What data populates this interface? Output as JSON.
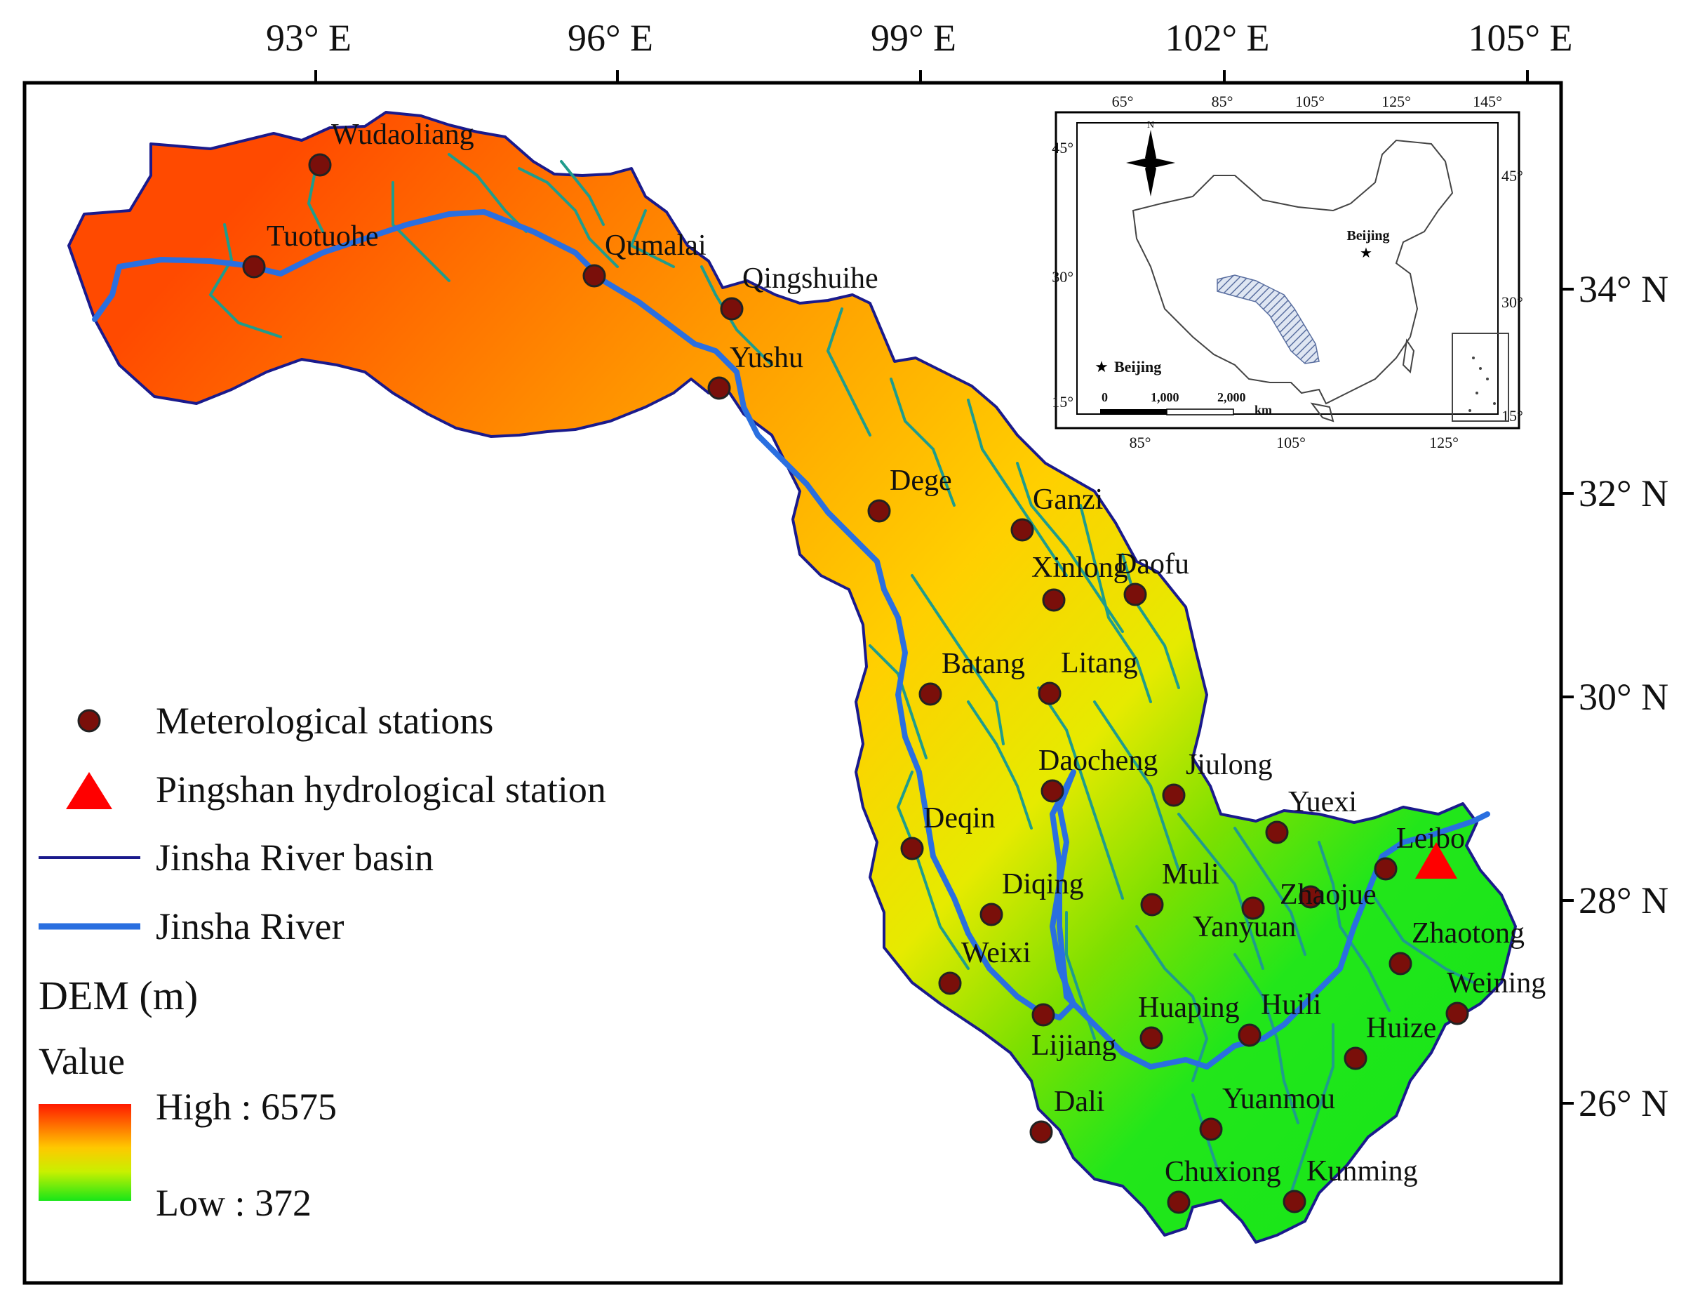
{
  "axes": {
    "top": [
      "93° E",
      "96° E",
      "99° E",
      "102° E",
      "105° E"
    ],
    "right": [
      "34° N",
      "32° N",
      "30° N",
      "28° N",
      "26° N"
    ]
  },
  "stations": [
    "Wudaoliang",
    "Tuotuohe",
    "Qumalai",
    "Qingshuihe",
    "Yushu",
    "Dege",
    "Ganzi",
    "Xinlong",
    "Daofu",
    "Batang",
    "Litang",
    "Daocheng",
    "Jiulong",
    "Yuexi",
    "Deqin",
    "Leibo",
    "Zhaojue",
    "Muli",
    "Diqing",
    "Yanyuan",
    "Zhaotong",
    "Weixi",
    "Weining",
    "Huaping",
    "Huili",
    "Lijiang",
    "Huize",
    "Dali",
    "Yuanmou",
    "Chuxiong",
    "Kunming"
  ],
  "legend": {
    "met": "Meterological stations",
    "ping": "Pingshan hydrological station",
    "basin": "Jinsha River basin",
    "river": "Jinsha River",
    "dem_title": "DEM (m)",
    "value": "Value",
    "high": "High : 6575",
    "low": "Low : 372"
  },
  "inset": {
    "top_ticks": [
      "65°",
      "85°",
      "105°",
      "125°",
      "145°"
    ],
    "bottom_ticks": [
      "85°",
      "105°",
      "125°"
    ],
    "left_ticks": [
      "45°",
      "30°",
      "15°"
    ],
    "right_ticks": [
      "45°",
      "30°",
      "15°"
    ],
    "north": "N",
    "capital": "Beijing",
    "legend_capital": "Beijing",
    "scale": [
      "0",
      "1,000",
      "2,000",
      "km"
    ]
  },
  "colors": {
    "dem_high": "#ff2a00",
    "dem_mid": "#ffd200",
    "dem_low": "#22e61a",
    "river": "#2a6fe0",
    "tributary": "#1f9c8c",
    "basin_outline": "#1a1a8c",
    "station": "#7a0f0a",
    "pingshan": "#ff0000"
  }
}
